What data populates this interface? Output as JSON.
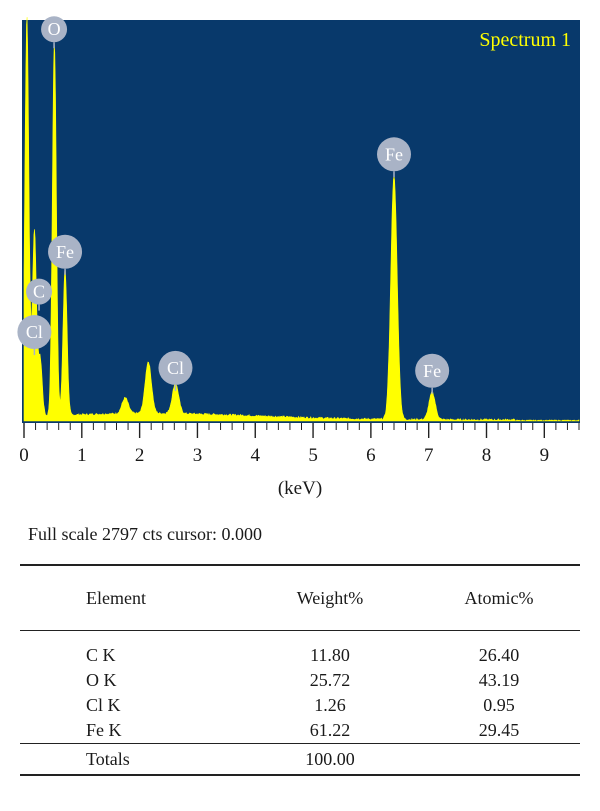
{
  "chart_data": {
    "type": "area",
    "title": "Spectrum 1",
    "xlabel": "(keV)",
    "xlim": [
      0,
      9.6
    ],
    "ylim": [
      0,
      2797
    ],
    "xticks": [
      0,
      1,
      2,
      3,
      4,
      5,
      6,
      7,
      8,
      9
    ],
    "colors": {
      "background": "#08396b",
      "spectrum": "#ffff00",
      "title": "#ffff00",
      "peak_marker": "#a9b3c6"
    },
    "peaks": [
      {
        "energy": 0.05,
        "counts": 2797
      },
      {
        "energy": 0.18,
        "counts": 1300
      },
      {
        "energy": 0.28,
        "counts": 400
      },
      {
        "energy": 0.525,
        "counts": 2600
      },
      {
        "energy": 0.71,
        "counts": 1020
      },
      {
        "energy": 1.75,
        "counts": 110
      },
      {
        "energy": 2.15,
        "counts": 360
      },
      {
        "energy": 2.62,
        "counts": 210
      },
      {
        "energy": 6.4,
        "counts": 1700
      },
      {
        "energy": 7.06,
        "counts": 190
      }
    ],
    "annotations": [
      {
        "label": "O",
        "energy": 0.52,
        "counts": 2600
      },
      {
        "label": "Fe",
        "energy": 0.71,
        "counts": 1020
      },
      {
        "label": "C",
        "energy": 0.26,
        "counts": 770
      },
      {
        "label": "Cl",
        "energy": 0.18,
        "counts": 460
      },
      {
        "label": "Cl",
        "energy": 2.62,
        "counts": 210
      },
      {
        "label": "Fe",
        "energy": 6.4,
        "counts": 1700
      },
      {
        "label": "Fe",
        "energy": 7.06,
        "counts": 190
      }
    ]
  },
  "xaxis_label": "(keV)",
  "full_scale_text": "Full scale 2797 cts cursor: 0.000",
  "table": {
    "headers": [
      "Element",
      "Weight%",
      "Atomic%"
    ],
    "rows": [
      [
        "C K",
        "11.80",
        "26.40"
      ],
      [
        "O K",
        "25.72",
        "43.19"
      ],
      [
        "Cl K",
        "1.26",
        "0.95"
      ],
      [
        "Fe K",
        "61.22",
        "29.45"
      ]
    ],
    "totals": [
      "Totals",
      "100.00",
      ""
    ]
  }
}
